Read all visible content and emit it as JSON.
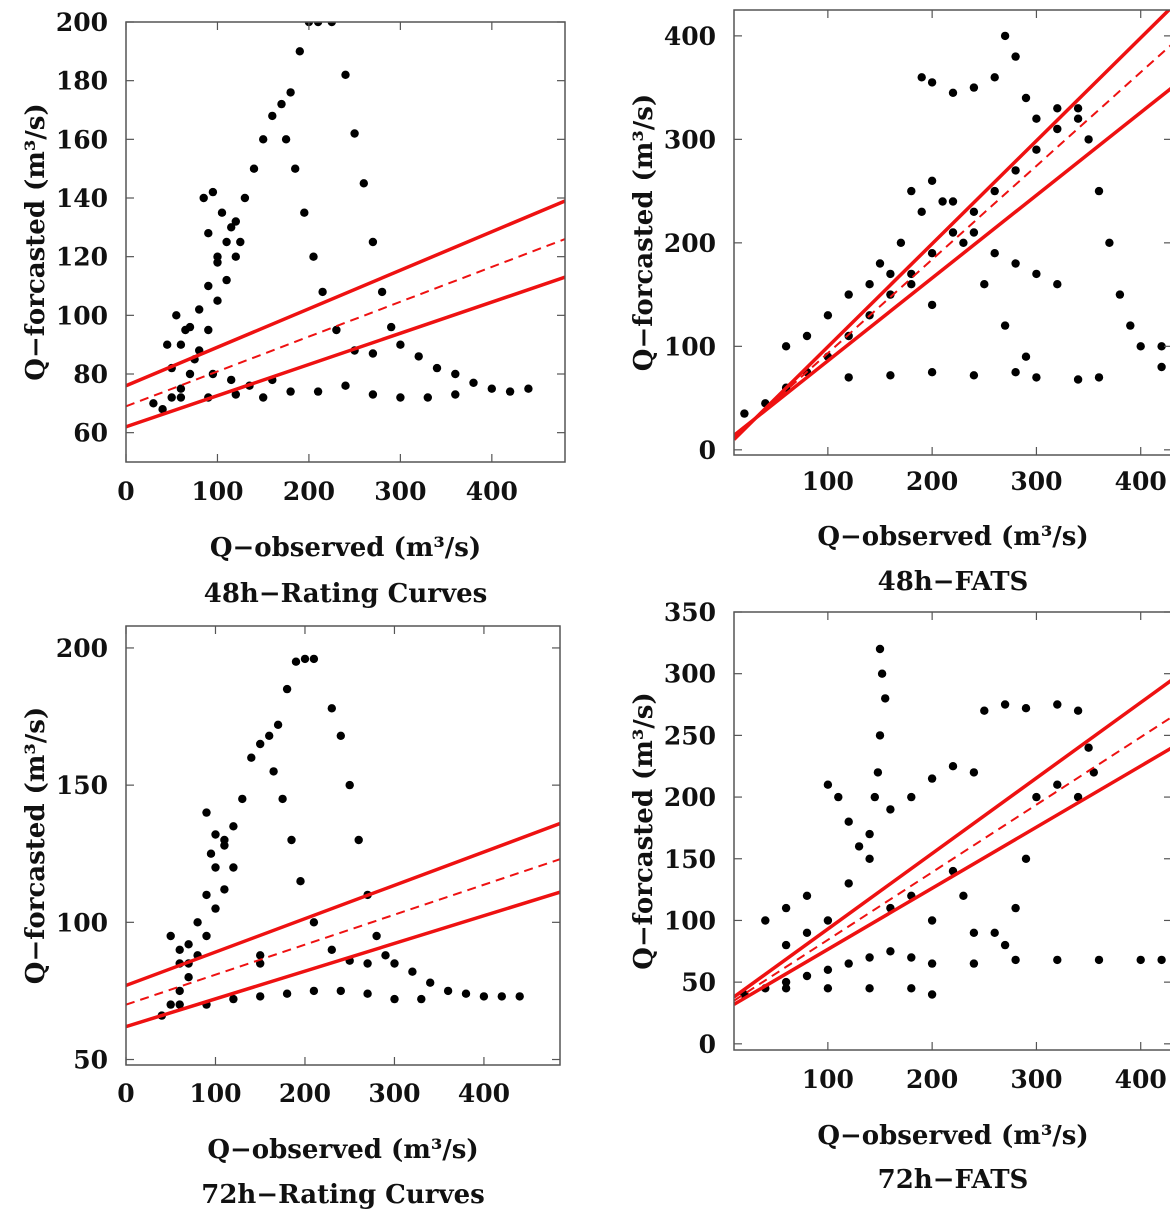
{
  "chart_data": [
    {
      "type": "scatter",
      "title": "48h−Rating Curves",
      "xlabel": "Q−observed (m³/s)",
      "ylabel": "Q−forcasted (m³/s)",
      "xlim": [
        0,
        480
      ],
      "ylim": [
        50,
        200
      ],
      "xticks": [
        0,
        100,
        200,
        300,
        400
      ],
      "yticks": [
        60,
        80,
        100,
        120,
        140,
        160,
        180,
        200
      ],
      "marker_color": "#000000",
      "lines": [
        {
          "style": "solid",
          "color": "#ee1111",
          "x": [
            0,
            480
          ],
          "y": [
            76,
            139
          ]
        },
        {
          "style": "dashed",
          "color": "#ee1111",
          "x": [
            0,
            480
          ],
          "y": [
            69,
            126
          ]
        },
        {
          "style": "solid",
          "color": "#ee1111",
          "x": [
            0,
            480
          ],
          "y": [
            62,
            113
          ]
        }
      ],
      "points": [
        [
          30,
          70
        ],
        [
          40,
          68
        ],
        [
          50,
          72
        ],
        [
          60,
          75
        ],
        [
          70,
          80
        ],
        [
          80,
          88
        ],
        [
          90,
          95
        ],
        [
          100,
          105
        ],
        [
          110,
          112
        ],
        [
          120,
          120
        ],
        [
          50,
          82
        ],
        [
          60,
          90
        ],
        [
          70,
          96
        ],
        [
          80,
          102
        ],
        [
          90,
          110
        ],
        [
          100,
          118
        ],
        [
          110,
          125
        ],
        [
          120,
          132
        ],
        [
          130,
          140
        ],
        [
          140,
          150
        ],
        [
          150,
          160
        ],
        [
          160,
          168
        ],
        [
          170,
          172
        ],
        [
          180,
          176
        ],
        [
          190,
          190
        ],
        [
          200,
          200
        ],
        [
          210,
          200
        ],
        [
          225,
          200
        ],
        [
          240,
          182
        ],
        [
          250,
          162
        ],
        [
          260,
          145
        ],
        [
          270,
          125
        ],
        [
          280,
          108
        ],
        [
          290,
          96
        ],
        [
          300,
          90
        ],
        [
          320,
          86
        ],
        [
          340,
          82
        ],
        [
          360,
          80
        ],
        [
          380,
          77
        ],
        [
          400,
          75
        ],
        [
          420,
          74
        ],
        [
          440,
          75
        ],
        [
          175,
          160
        ],
        [
          185,
          150
        ],
        [
          195,
          135
        ],
        [
          205,
          120
        ],
        [
          215,
          108
        ],
        [
          230,
          95
        ],
        [
          250,
          88
        ],
        [
          270,
          87
        ],
        [
          85,
          140
        ],
        [
          95,
          142
        ],
        [
          105,
          135
        ],
        [
          115,
          130
        ],
        [
          125,
          125
        ],
        [
          90,
          128
        ],
        [
          100,
          120
        ],
        [
          60,
          72
        ],
        [
          90,
          72
        ],
        [
          120,
          73
        ],
        [
          150,
          72
        ],
        [
          180,
          74
        ],
        [
          210,
          74
        ],
        [
          240,
          76
        ],
        [
          270,
          73
        ],
        [
          300,
          72
        ],
        [
          330,
          72
        ],
        [
          360,
          73
        ],
        [
          45,
          90
        ],
        [
          55,
          100
        ],
        [
          65,
          95
        ],
        [
          75,
          85
        ],
        [
          95,
          80
        ],
        [
          115,
          78
        ],
        [
          135,
          76
        ],
        [
          160,
          78
        ]
      ]
    },
    {
      "type": "scatter",
      "title": "48h−FATS",
      "xlabel": "Q−observed (m³/s)",
      "ylabel": "Q−forcasted (m³/s)",
      "xlim": [
        10,
        430
      ],
      "ylim": [
        -5,
        425
      ],
      "xticks": [
        100,
        200,
        300,
        400
      ],
      "yticks": [
        0,
        100,
        200,
        300,
        400
      ],
      "marker_color": "#000000",
      "lines": [
        {
          "style": "solid",
          "color": "#ee1111",
          "x": [
            10,
            430
          ],
          "y": [
            10,
            428
          ]
        },
        {
          "style": "dashed",
          "color": "#ee1111",
          "x": [
            10,
            430
          ],
          "y": [
            12,
            392
          ]
        },
        {
          "style": "solid",
          "color": "#ee1111",
          "x": [
            10,
            430
          ],
          "y": [
            14,
            350
          ]
        }
      ],
      "points": [
        [
          20,
          35
        ],
        [
          40,
          45
        ],
        [
          60,
          60
        ],
        [
          80,
          75
        ],
        [
          100,
          90
        ],
        [
          120,
          110
        ],
        [
          140,
          130
        ],
        [
          160,
          150
        ],
        [
          180,
          170
        ],
        [
          200,
          190
        ],
        [
          220,
          210
        ],
        [
          240,
          230
        ],
        [
          260,
          250
        ],
        [
          280,
          270
        ],
        [
          300,
          290
        ],
        [
          320,
          310
        ],
        [
          340,
          320
        ],
        [
          190,
          360
        ],
        [
          200,
          355
        ],
        [
          220,
          345
        ],
        [
          240,
          350
        ],
        [
          260,
          360
        ],
        [
          270,
          400
        ],
        [
          280,
          380
        ],
        [
          290,
          340
        ],
        [
          300,
          320
        ],
        [
          320,
          330
        ],
        [
          340,
          330
        ],
        [
          350,
          300
        ],
        [
          360,
          250
        ],
        [
          370,
          200
        ],
        [
          380,
          150
        ],
        [
          390,
          120
        ],
        [
          400,
          100
        ],
        [
          420,
          100
        ],
        [
          420,
          80
        ],
        [
          120,
          70
        ],
        [
          160,
          72
        ],
        [
          200,
          75
        ],
        [
          240,
          72
        ],
        [
          280,
          75
        ],
        [
          300,
          70
        ],
        [
          340,
          68
        ],
        [
          360,
          70
        ],
        [
          150,
          180
        ],
        [
          170,
          200
        ],
        [
          190,
          230
        ],
        [
          210,
          240
        ],
        [
          230,
          200
        ],
        [
          250,
          160
        ],
        [
          270,
          120
        ],
        [
          290,
          90
        ],
        [
          60,
          100
        ],
        [
          80,
          110
        ],
        [
          100,
          130
        ],
        [
          120,
          150
        ],
        [
          140,
          160
        ],
        [
          160,
          170
        ],
        [
          180,
          160
        ],
        [
          200,
          140
        ],
        [
          180,
          250
        ],
        [
          200,
          260
        ],
        [
          220,
          240
        ],
        [
          240,
          210
        ],
        [
          260,
          190
        ],
        [
          280,
          180
        ],
        [
          300,
          170
        ],
        [
          320,
          160
        ]
      ]
    },
    {
      "type": "scatter",
      "title": "72h−Rating Curves",
      "xlabel": "Q−observed (m³/s)",
      "ylabel": "Q−forcasted (m³/s)",
      "xlim": [
        0,
        485
      ],
      "ylim": [
        48,
        208
      ],
      "xticks": [
        0,
        100,
        200,
        300,
        400
      ],
      "yticks": [
        50,
        100,
        150,
        200
      ],
      "marker_color": "#000000",
      "lines": [
        {
          "style": "solid",
          "color": "#ee1111",
          "x": [
            0,
            485
          ],
          "y": [
            77,
            136
          ]
        },
        {
          "style": "dashed",
          "color": "#ee1111",
          "x": [
            0,
            485
          ],
          "y": [
            70,
            123
          ]
        },
        {
          "style": "solid",
          "color": "#ee1111",
          "x": [
            0,
            485
          ],
          "y": [
            62,
            111
          ]
        }
      ],
      "points": [
        [
          40,
          66
        ],
        [
          50,
          70
        ],
        [
          60,
          75
        ],
        [
          70,
          80
        ],
        [
          80,
          88
        ],
        [
          90,
          95
        ],
        [
          100,
          105
        ],
        [
          110,
          112
        ],
        [
          120,
          120
        ],
        [
          60,
          85
        ],
        [
          70,
          92
        ],
        [
          80,
          100
        ],
        [
          90,
          110
        ],
        [
          100,
          120
        ],
        [
          110,
          128
        ],
        [
          120,
          135
        ],
        [
          130,
          145
        ],
        [
          140,
          160
        ],
        [
          150,
          165
        ],
        [
          160,
          168
        ],
        [
          170,
          172
        ],
        [
          180,
          185
        ],
        [
          190,
          195
        ],
        [
          200,
          196
        ],
        [
          210,
          196
        ],
        [
          230,
          178
        ],
        [
          240,
          168
        ],
        [
          250,
          150
        ],
        [
          260,
          130
        ],
        [
          270,
          110
        ],
        [
          280,
          95
        ],
        [
          290,
          88
        ],
        [
          300,
          85
        ],
        [
          320,
          82
        ],
        [
          340,
          78
        ],
        [
          360,
          75
        ],
        [
          380,
          74
        ],
        [
          400,
          73
        ],
        [
          420,
          73
        ],
        [
          440,
          73
        ],
        [
          165,
          155
        ],
        [
          175,
          145
        ],
        [
          185,
          130
        ],
        [
          195,
          115
        ],
        [
          210,
          100
        ],
        [
          230,
          90
        ],
        [
          250,
          86
        ],
        [
          270,
          85
        ],
        [
          90,
          140
        ],
        [
          100,
          132
        ],
        [
          110,
          130
        ],
        [
          95,
          125
        ],
        [
          60,
          70
        ],
        [
          90,
          70
        ],
        [
          120,
          72
        ],
        [
          150,
          73
        ],
        [
          180,
          74
        ],
        [
          210,
          75
        ],
        [
          240,
          75
        ],
        [
          270,
          74
        ],
        [
          300,
          72
        ],
        [
          330,
          72
        ],
        [
          50,
          95
        ],
        [
          60,
          90
        ],
        [
          70,
          85
        ],
        [
          150,
          88
        ],
        [
          150,
          85
        ]
      ]
    },
    {
      "type": "scatter",
      "title": "72h−FATS",
      "xlabel": "Q−observed (m³/s)",
      "ylabel": "Q−forcasted (m³/s)",
      "xlim": [
        10,
        430
      ],
      "ylim": [
        -5,
        350
      ],
      "xticks": [
        100,
        200,
        300,
        400
      ],
      "yticks": [
        0,
        50,
        100,
        150,
        200,
        250,
        300,
        350
      ],
      "marker_color": "#000000",
      "lines": [
        {
          "style": "solid",
          "color": "#ee1111",
          "x": [
            10,
            430
          ],
          "y": [
            38,
            295
          ]
        },
        {
          "style": "dashed",
          "color": "#ee1111",
          "x": [
            10,
            430
          ],
          "y": [
            35,
            265
          ]
        },
        {
          "style": "solid",
          "color": "#ee1111",
          "x": [
            10,
            430
          ],
          "y": [
            32,
            240
          ]
        }
      ],
      "points": [
        [
          20,
          40
        ],
        [
          40,
          45
        ],
        [
          60,
          50
        ],
        [
          80,
          55
        ],
        [
          100,
          60
        ],
        [
          120,
          65
        ],
        [
          140,
          70
        ],
        [
          160,
          75
        ],
        [
          180,
          70
        ],
        [
          200,
          65
        ],
        [
          240,
          65
        ],
        [
          280,
          68
        ],
        [
          320,
          68
        ],
        [
          360,
          68
        ],
        [
          400,
          68
        ],
        [
          420,
          68
        ],
        [
          150,
          320
        ],
        [
          152,
          300
        ],
        [
          155,
          280
        ],
        [
          150,
          250
        ],
        [
          148,
          220
        ],
        [
          145,
          200
        ],
        [
          100,
          210
        ],
        [
          110,
          200
        ],
        [
          120,
          180
        ],
        [
          130,
          160
        ],
        [
          140,
          170
        ],
        [
          160,
          190
        ],
        [
          180,
          200
        ],
        [
          200,
          215
        ],
        [
          220,
          225
        ],
        [
          240,
          220
        ],
        [
          250,
          270
        ],
        [
          270,
          275
        ],
        [
          290,
          272
        ],
        [
          320,
          275
        ],
        [
          340,
          270
        ],
        [
          350,
          240
        ],
        [
          355,
          220
        ],
        [
          340,
          200
        ],
        [
          320,
          210
        ],
        [
          300,
          200
        ],
        [
          290,
          150
        ],
        [
          280,
          110
        ],
        [
          270,
          80
        ],
        [
          260,
          90
        ],
        [
          220,
          140
        ],
        [
          230,
          120
        ],
        [
          240,
          90
        ],
        [
          200,
          100
        ],
        [
          180,
          120
        ],
        [
          160,
          110
        ],
        [
          40,
          100
        ],
        [
          60,
          110
        ],
        [
          80,
          120
        ],
        [
          60,
          80
        ],
        [
          80,
          90
        ],
        [
          100,
          100
        ],
        [
          120,
          130
        ],
        [
          140,
          150
        ],
        [
          60,
          45
        ],
        [
          100,
          45
        ],
        [
          140,
          45
        ],
        [
          180,
          45
        ],
        [
          200,
          40
        ]
      ]
    }
  ]
}
